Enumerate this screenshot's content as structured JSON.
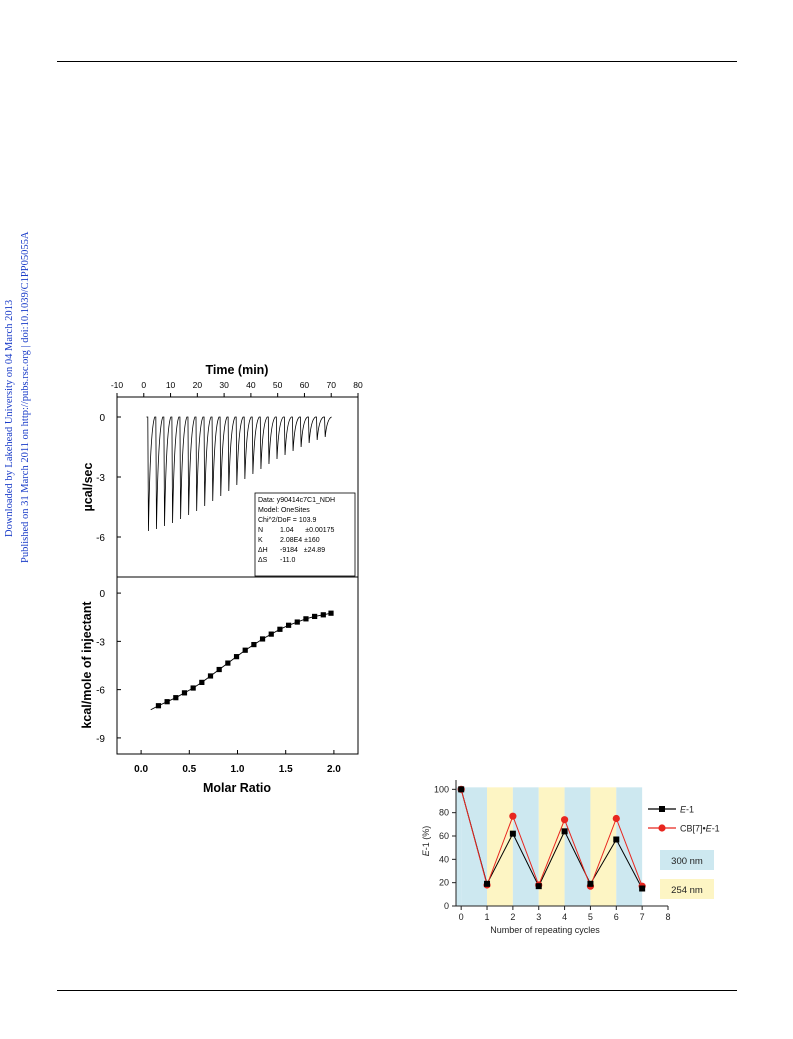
{
  "page": {
    "side_notes": [
      "Downloaded by Lakehead University on 04 March 2013",
      "Published on 31 March 2011 on http://pubs.rsc.org | doi:10.1039/C1PP05055A"
    ]
  },
  "figures": {
    "itc": {
      "legend_lines": [
        {
          "label": "Data:",
          "value": "y90414c7C1_NDH"
        },
        {
          "label": "Model:",
          "value": "OneSites"
        },
        {
          "label": "Chi^2/DoF = 103.9",
          "value": ""
        },
        {
          "label": "N",
          "value": "1.04      ±0.00175"
        },
        {
          "label": "K",
          "value": "2.08E4 ±160"
        },
        {
          "label": "ΔH",
          "value": "-9184   ±24.89"
        },
        {
          "label": "ΔS",
          "value": "-11.0"
        }
      ]
    }
  },
  "chart_data": [
    {
      "type": "line",
      "title": "",
      "xlabel": "Time (min)",
      "ylabel": "µcal/sec",
      "xlim": [
        -10,
        80
      ],
      "ylim": [
        -8,
        1
      ],
      "xticks": [
        "-10",
        "0",
        "10",
        "20",
        "30",
        "40",
        "50",
        "60",
        "70",
        "80"
      ],
      "yticks": [
        "0",
        "-3",
        "-6"
      ],
      "series": [
        {
          "injection_times_min": [
            1.5,
            4.5,
            7.5,
            10.5,
            13.5,
            16.5,
            19.5,
            22.5,
            25.5,
            28.5,
            31.5,
            34.5,
            37.5,
            40.5,
            43.5,
            46.5,
            49.5,
            52.5,
            55.5,
            58.5,
            61.5,
            64.5,
            67.5
          ],
          "peak_minima": [
            -5.7,
            -5.6,
            -5.45,
            -5.3,
            -5.1,
            -4.9,
            -4.7,
            -4.45,
            -4.2,
            -3.95,
            -3.7,
            -3.4,
            -3.1,
            -2.85,
            -2.6,
            -2.35,
            -2.1,
            -1.9,
            -1.7,
            -1.5,
            -1.3,
            -1.15,
            -1.0
          ],
          "baseline": 0
        }
      ]
    },
    {
      "type": "scatter",
      "title": "",
      "xlabel": "Molar Ratio",
      "ylabel": "kcal/mole of injectant",
      "xlim": [
        -0.25,
        2.25
      ],
      "ylim": [
        -10,
        1
      ],
      "xticks": [
        "0.0",
        "0.5",
        "1.0",
        "1.5",
        "2.0"
      ],
      "yticks": [
        "0",
        "-3",
        "-6",
        "-9"
      ],
      "series": [
        {
          "x": [
            0.18,
            0.27,
            0.36,
            0.45,
            0.54,
            0.63,
            0.72,
            0.81,
            0.9,
            0.99,
            1.08,
            1.17,
            1.26,
            1.35,
            1.44,
            1.53,
            1.62,
            1.71,
            1.8,
            1.89,
            1.97
          ],
          "y": [
            -7.0,
            -6.75,
            -6.5,
            -6.2,
            -5.9,
            -5.55,
            -5.15,
            -4.75,
            -4.35,
            -3.95,
            -3.55,
            -3.2,
            -2.85,
            -2.55,
            -2.25,
            -2.0,
            -1.8,
            -1.6,
            -1.45,
            -1.35,
            -1.25
          ]
        }
      ],
      "fit_line": true
    },
    {
      "type": "line",
      "title": "",
      "xlabel": "Number of repeating cycles",
      "ylabel": "E-1 (%)",
      "xlim": [
        -0.2,
        8
      ],
      "ylim": [
        0,
        108
      ],
      "xticks": [
        "0",
        "1",
        "2",
        "3",
        "4",
        "5",
        "6",
        "7",
        "8"
      ],
      "yticks": [
        "0",
        "20",
        "40",
        "60",
        "80",
        "100"
      ],
      "bands": [
        {
          "from": 0,
          "to": 1,
          "label": "300 nm",
          "color": "#cde8f0"
        },
        {
          "from": 1,
          "to": 2,
          "label": "254 nm",
          "color": "#fdf5c4"
        },
        {
          "from": 2,
          "to": 3,
          "label": "300 nm",
          "color": "#cde8f0"
        },
        {
          "from": 3,
          "to": 4,
          "label": "254 nm",
          "color": "#fdf5c4"
        },
        {
          "from": 4,
          "to": 5,
          "label": "300 nm",
          "color": "#cde8f0"
        },
        {
          "from": 5,
          "to": 6,
          "label": "254 nm",
          "color": "#fdf5c4"
        },
        {
          "from": 6,
          "to": 7,
          "label": "300 nm",
          "color": "#cde8f0"
        }
      ],
      "band_legend": [
        "300 nm",
        "254 nm"
      ],
      "x": [
        0,
        1,
        2,
        3,
        4,
        5,
        6,
        7
      ],
      "series": [
        {
          "name": "E-1",
          "name_parts": [
            "E",
            "-1"
          ],
          "values": [
            100,
            19,
            62,
            17,
            64,
            19,
            57,
            15
          ],
          "color": "#000000",
          "marker": "square"
        },
        {
          "name": "CB[7]•E-1",
          "name_parts": [
            "CB[7]•",
            "E",
            "-1"
          ],
          "values": [
            100,
            18,
            77,
            18,
            74,
            17,
            75,
            17
          ],
          "color": "#e8261f",
          "marker": "circle"
        }
      ]
    }
  ]
}
